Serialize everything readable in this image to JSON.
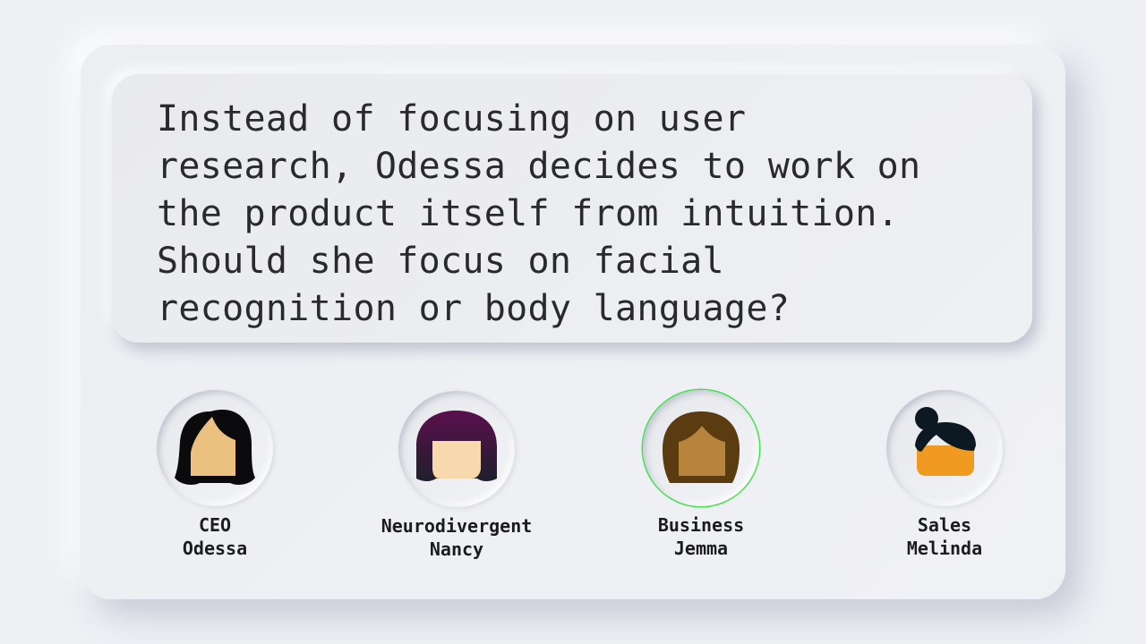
{
  "question": {
    "text": "Instead of focusing on user\nresearch, Odessa decides to work on\nthe product itself from intuition.\nShould she focus on facial\nrecognition or body language?"
  },
  "personas": [
    {
      "role": "CEO",
      "name": "Odessa",
      "selected": false,
      "icon": "woman-black-hair-avatar-icon",
      "hair_color": "#0b0b0d",
      "skin_color": "#ecc07f"
    },
    {
      "role": "Neurodivergent",
      "name": "Nancy",
      "selected": false,
      "icon": "woman-purple-bob-avatar-icon",
      "hair_color": "#4a0d3f",
      "skin_color": "#f8d9ae"
    },
    {
      "role": "Business",
      "name": "Jemma",
      "selected": true,
      "icon": "woman-brown-hair-avatar-icon",
      "hair_color": "#5b3c10",
      "skin_color": "#b6843c"
    },
    {
      "role": "Sales",
      "name": "Melinda",
      "selected": false,
      "icon": "woman-bun-hair-avatar-icon",
      "hair_color": "#0c1822",
      "skin_color": "#f09a22"
    }
  ],
  "colors": {
    "selected_ring": "#3fe04a",
    "background": "#eef0f4",
    "text": "#2a2a2e"
  }
}
